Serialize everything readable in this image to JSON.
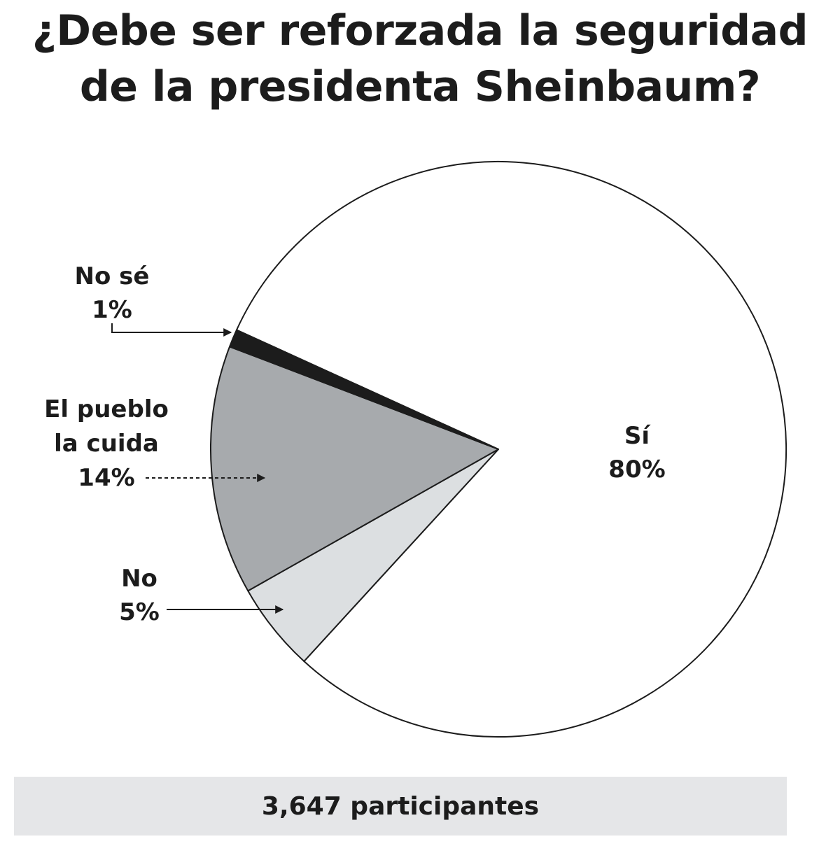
{
  "chart_data": {
    "type": "pie",
    "title_lines": [
      "¿Debe ser reforzada la seguridad",
      "de la presidenta Sheinbaum?"
    ],
    "slices": [
      {
        "name": "Sí",
        "label_lines": [
          "Sí"
        ],
        "value": 80,
        "value_label": "80%",
        "color": "#ffffff"
      },
      {
        "name": "No",
        "label_lines": [
          "No"
        ],
        "value": 5,
        "value_label": "5%",
        "color": "#dcdfe1"
      },
      {
        "name": "El pueblo la cuida",
        "label_lines": [
          "El pueblo",
          "la cuida"
        ],
        "value": 14,
        "value_label": "14%",
        "color": "#a7aaad"
      },
      {
        "name": "No sé",
        "label_lines": [
          "No sé"
        ],
        "value": 1,
        "value_label": "1%",
        "color": "#1c1c1c"
      }
    ],
    "footer": "3,647 participantes"
  }
}
